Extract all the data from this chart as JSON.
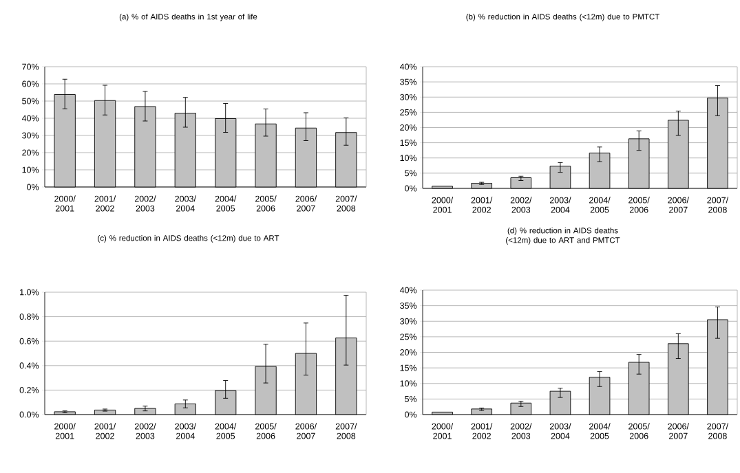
{
  "chart_data": [
    {
      "type": "bar",
      "title": "(a) % of AIDS deaths in 1st year of life",
      "categories": [
        "2000/ 2001",
        "2001/ 2002",
        "2002/ 2003",
        "2003/ 2004",
        "2004/ 2005",
        "2005/ 2006",
        "2006/ 2007",
        "2007/ 2008"
      ],
      "color": "#c0c0c0",
      "values": [
        53.8,
        50.3,
        46.8,
        42.9,
        39.8,
        36.7,
        34.3,
        31.7
      ],
      "errors": [
        [
          45.5,
          62.7
        ],
        [
          41.9,
          59.2
        ],
        [
          38.4,
          55.6
        ],
        [
          34.8,
          52.1
        ],
        [
          31.8,
          48.6
        ],
        [
          29.6,
          45.4
        ],
        [
          27.0,
          43.2
        ],
        [
          24.3,
          40.2
        ]
      ],
      "ylim": [
        0,
        70
      ],
      "yticks": [
        {
          "value": 0,
          "label": "0%"
        },
        {
          "value": 10,
          "label": "10%"
        },
        {
          "value": 20,
          "label": "20%"
        },
        {
          "value": 30,
          "label": "30%"
        },
        {
          "value": 40,
          "label": "40%"
        },
        {
          "value": 50,
          "label": "50%"
        },
        {
          "value": 60,
          "label": "60%"
        },
        {
          "value": 70,
          "label": "70%"
        }
      ],
      "grid": "y"
    },
    {
      "type": "bar",
      "title": "(b) % reduction in AIDS deaths (<12m) due to PMTCT",
      "categories": [
        "2000/ 2001",
        "2001/ 2002",
        "2002/ 2003",
        "2003/ 2004",
        "2004/ 2005",
        "2005/ 2006",
        "2006/ 2007",
        "2007/ 2008"
      ],
      "color": "#c0c0c0",
      "values": [
        0.7,
        1.7,
        3.5,
        7.3,
        11.6,
        16.3,
        22.4,
        29.7
      ],
      "errors": [
        null,
        [
          1.3,
          2.0
        ],
        [
          2.6,
          4.0
        ],
        [
          5.3,
          8.5
        ],
        [
          8.8,
          13.6
        ],
        [
          12.5,
          18.9
        ],
        [
          17.4,
          25.4
        ],
        [
          23.9,
          33.8
        ]
      ],
      "ylim": [
        0,
        40
      ],
      "yticks": [
        {
          "value": 0,
          "label": "0%"
        },
        {
          "value": 5,
          "label": "5%"
        },
        {
          "value": 10,
          "label": "10%"
        },
        {
          "value": 15,
          "label": "15%"
        },
        {
          "value": 20,
          "label": "20%"
        },
        {
          "value": 25,
          "label": "25%"
        },
        {
          "value": 30,
          "label": "30%"
        },
        {
          "value": 35,
          "label": "35%"
        },
        {
          "value": 40,
          "label": "40%"
        }
      ],
      "grid": "y"
    },
    {
      "type": "bar",
      "title": "(c) % reduction in AIDS deaths (<12m) due to ART",
      "categories": [
        "2000/ 2001",
        "2001/ 2002",
        "2002/ 2003",
        "2003/ 2004",
        "2004/ 2005",
        "2005/ 2006",
        "2006/ 2007",
        "2007/ 2008"
      ],
      "color": "#c0c0c0",
      "values": [
        0.023,
        0.037,
        0.05,
        0.087,
        0.196,
        0.393,
        0.5,
        0.626
      ],
      "errors": [
        [
          0.015,
          0.03
        ],
        [
          0.028,
          0.045
        ],
        [
          0.03,
          0.069
        ],
        [
          0.055,
          0.119
        ],
        [
          0.133,
          0.278
        ],
        [
          0.258,
          0.575
        ],
        [
          0.322,
          0.748
        ],
        [
          0.404,
          0.975
        ]
      ],
      "ylim": [
        0,
        1.0
      ],
      "yticks": [
        {
          "value": 0,
          "label": "0.0%"
        },
        {
          "value": 0.2,
          "label": "0.2%"
        },
        {
          "value": 0.4,
          "label": "0.4%"
        },
        {
          "value": 0.6,
          "label": "0.6%"
        },
        {
          "value": 0.8,
          "label": "0.8%"
        },
        {
          "value": 1.0,
          "label": "1.0%"
        }
      ],
      "grid": "y"
    },
    {
      "type": "bar",
      "title": "(d) % reduction in AIDS deaths (<12m) due to ART and PMTCT",
      "categories": [
        "2000/ 2001",
        "2001/ 2002",
        "2002/ 2003",
        "2003/ 2004",
        "2004/ 2005",
        "2005/ 2006",
        "2006/ 2007",
        "2007/ 2008"
      ],
      "color": "#c0c0c0",
      "values": [
        0.8,
        1.8,
        3.7,
        7.5,
        12.0,
        16.8,
        22.8,
        30.5
      ],
      "errors": [
        null,
        [
          1.3,
          2.1
        ],
        [
          2.6,
          4.3
        ],
        [
          5.5,
          8.5
        ],
        [
          9.0,
          13.8
        ],
        [
          13.0,
          19.3
        ],
        [
          18.0,
          26.0
        ],
        [
          24.5,
          34.6
        ]
      ],
      "ylim": [
        0,
        40
      ],
      "yticks": [
        {
          "value": 0,
          "label": "0%"
        },
        {
          "value": 5,
          "label": "5%"
        },
        {
          "value": 10,
          "label": "10%"
        },
        {
          "value": 15,
          "label": "15%"
        },
        {
          "value": 20,
          "label": "20%"
        },
        {
          "value": 25,
          "label": "25%"
        },
        {
          "value": 30,
          "label": "30%"
        },
        {
          "value": 35,
          "label": "35%"
        },
        {
          "value": 40,
          "label": "40%"
        }
      ],
      "grid": "y"
    }
  ]
}
